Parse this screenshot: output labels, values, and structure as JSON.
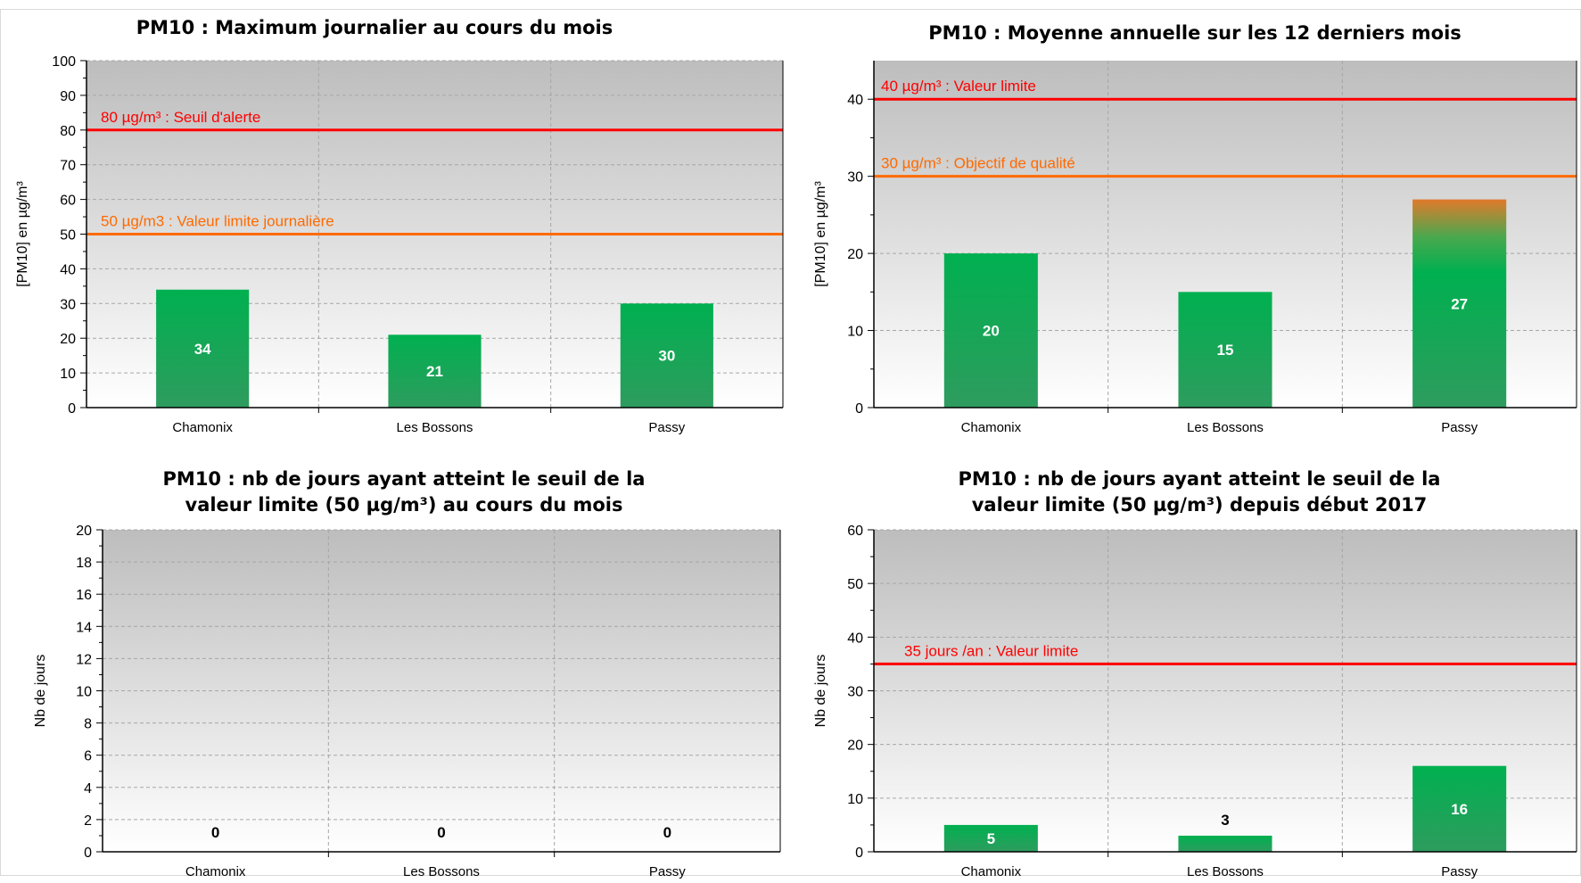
{
  "chart_data": [
    {
      "type": "bar",
      "title": "PM10 : Maximum journalier au cours du mois",
      "title_lines": [
        "PM10 : Maximum journalier au cours du mois"
      ],
      "ylabel": "[PM10]  en µg/m³",
      "categories": [
        "Chamonix",
        "Les Bossons",
        "Passy"
      ],
      "values": [
        34,
        21,
        30
      ],
      "ylim": [
        0,
        100
      ],
      "yticks": [
        0,
        10,
        20,
        30,
        40,
        50,
        60,
        70,
        80,
        90,
        100
      ],
      "grid": true,
      "reference_lines": [
        {
          "value": 80,
          "label": "80 µg/m³ : Seuil d'alerte",
          "color": "#ff0000"
        },
        {
          "value": 50,
          "label": "50 µg/m3 : Valeur limite journalière",
          "color": "#ff6a00"
        }
      ]
    },
    {
      "type": "bar",
      "title": "PM10 : Moyenne annuelle sur les 12 derniers mois",
      "title_lines": [
        "PM10 : Moyenne annuelle sur les 12 derniers mois"
      ],
      "ylabel": "[PM10]  en µg/m³",
      "categories": [
        "Chamonix",
        "Les Bossons",
        "Passy"
      ],
      "values": [
        20,
        15,
        27
      ],
      "ylim": [
        0,
        45
      ],
      "yticks": [
        0,
        10,
        20,
        30,
        40
      ],
      "grid": true,
      "reference_lines": [
        {
          "value": 40,
          "label": "40 µg/m³ : Valeur limite",
          "color": "#ff0000"
        },
        {
          "value": 30,
          "label": "30 µg/m³ : Objectif de qualité",
          "color": "#ff6a00"
        }
      ]
    },
    {
      "type": "bar",
      "title": "PM10 : nb de jours ayant atteint le seuil de la valeur limite (50 µg/m³) au cours du mois",
      "title_lines": [
        "PM10 : nb de jours ayant atteint le seuil de la",
        "valeur limite (50 µg/m³) au cours du mois"
      ],
      "ylabel": "Nb de jours",
      "categories": [
        "Chamonix",
        "Les Bossons",
        "Passy"
      ],
      "values": [
        0,
        0,
        0
      ],
      "ylim": [
        0,
        20
      ],
      "yticks": [
        0,
        2,
        4,
        6,
        8,
        10,
        12,
        14,
        16,
        18,
        20
      ],
      "grid": true,
      "reference_lines": []
    },
    {
      "type": "bar",
      "title": "PM10 : nb de jours ayant atteint le seuil de la valeur limite (50 µg/m³) depuis début 2017",
      "title_lines": [
        "PM10 : nb de jours ayant atteint le seuil de la",
        "valeur limite (50 µg/m³) depuis début 2017"
      ],
      "ylabel": "Nb de jours",
      "categories": [
        "Chamonix",
        "Les Bossons",
        "Passy"
      ],
      "values": [
        5,
        3,
        16
      ],
      "ylim": [
        0,
        60
      ],
      "yticks": [
        0,
        10,
        20,
        30,
        40,
        50,
        60
      ],
      "grid": true,
      "reference_lines": [
        {
          "value": 35,
          "label": "35 jours /an  : Valeur limite",
          "color": "#ff0000"
        }
      ]
    }
  ],
  "colors": {
    "bar_top": "#00b050",
    "bar_bottom": "#2e9c5e",
    "value_label_inside": "#ffffff",
    "value_label_outside": "#000000"
  }
}
